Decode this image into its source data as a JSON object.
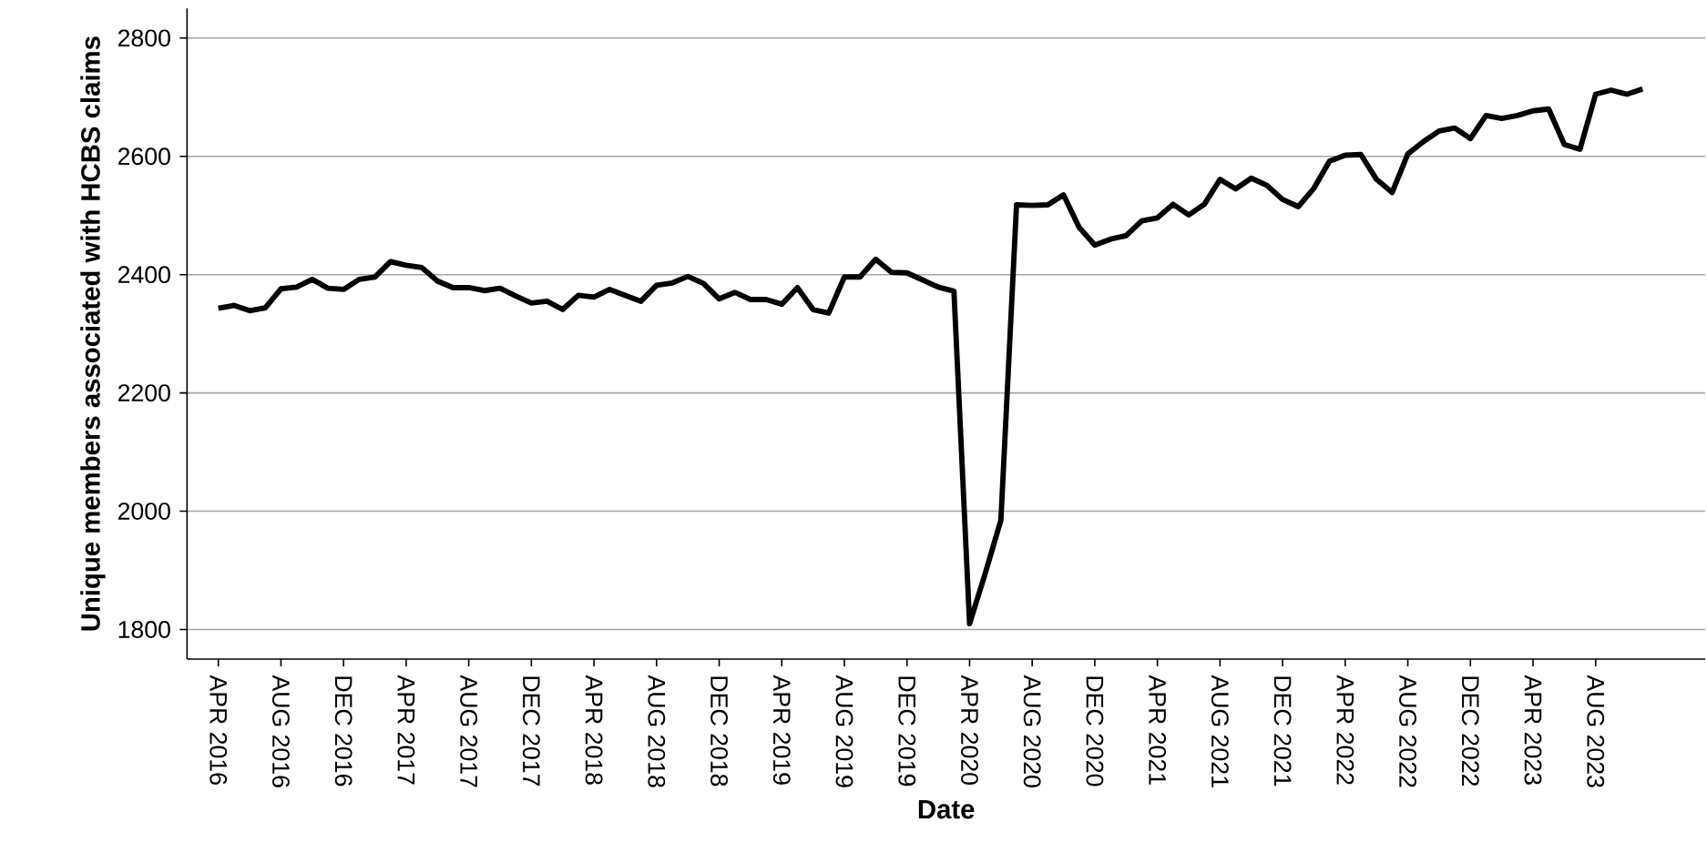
{
  "chart_data": {
    "type": "line",
    "xlabel": "Date",
    "ylabel": "Unique members associated with HCBS claims",
    "x": [
      "2016-04",
      "2016-05",
      "2016-06",
      "2016-07",
      "2016-08",
      "2016-09",
      "2016-10",
      "2016-11",
      "2016-12",
      "2017-01",
      "2017-02",
      "2017-03",
      "2017-04",
      "2017-05",
      "2017-06",
      "2017-07",
      "2017-08",
      "2017-09",
      "2017-10",
      "2017-11",
      "2017-12",
      "2018-01",
      "2018-02",
      "2018-03",
      "2018-04",
      "2018-05",
      "2018-06",
      "2018-07",
      "2018-08",
      "2018-09",
      "2018-10",
      "2018-11",
      "2018-12",
      "2019-01",
      "2019-02",
      "2019-03",
      "2019-04",
      "2019-05",
      "2019-06",
      "2019-07",
      "2019-08",
      "2019-09",
      "2019-10",
      "2019-11",
      "2019-12",
      "2020-01",
      "2020-02",
      "2020-03",
      "2020-04",
      "2020-05",
      "2020-06",
      "2020-07",
      "2020-08",
      "2020-09",
      "2020-10",
      "2020-11",
      "2020-12",
      "2021-01",
      "2021-02",
      "2021-03",
      "2021-04",
      "2021-05",
      "2021-06",
      "2021-07",
      "2021-08",
      "2021-09",
      "2021-10",
      "2021-11",
      "2021-12",
      "2022-01",
      "2022-02",
      "2022-03",
      "2022-04",
      "2022-05",
      "2022-06",
      "2022-07",
      "2022-08",
      "2022-09",
      "2022-10",
      "2022-11",
      "2022-12",
      "2023-01",
      "2023-02",
      "2023-03",
      "2023-04",
      "2023-05",
      "2023-06",
      "2023-07",
      "2023-08",
      "2023-09",
      "2023-10",
      "2023-11"
    ],
    "series": [
      {
        "color": "#000000",
        "values": [
          2343,
          2348,
          2339,
          2344,
          2376,
          2379,
          2392,
          2377,
          2375,
          2392,
          2396,
          2422,
          2416,
          2412,
          2389,
          2378,
          2378,
          2373,
          2377,
          2364,
          2352,
          2355,
          2341,
          2365,
          2362,
          2375,
          2365,
          2355,
          2382,
          2386,
          2397,
          2385,
          2359,
          2370,
          2358,
          2358,
          2350,
          2378,
          2341,
          2335,
          2396,
          2396,
          2426,
          2404,
          2403,
          2391,
          2379,
          2372,
          1810,
          1895,
          1985,
          2518,
          2517,
          2518,
          2535,
          2480,
          2450,
          2460,
          2466,
          2491,
          2496,
          2519,
          2501,
          2519,
          2561,
          2545,
          2563,
          2551,
          2527,
          2515,
          2546,
          2592,
          2602,
          2603,
          2561,
          2539,
          2604,
          2625,
          2643,
          2648,
          2630,
          2669,
          2664,
          2669,
          2677,
          2680,
          2620,
          2612,
          2705,
          2712,
          2705,
          2714
        ]
      }
    ],
    "xlim": [
      "2016-02",
      "2024-03"
    ],
    "ylim": [
      1750,
      2850
    ],
    "xticks": [
      {
        "value": "2016-04",
        "label": "APR 2016"
      },
      {
        "value": "2016-08",
        "label": "AUG 2016"
      },
      {
        "value": "2016-12",
        "label": "DEC 2016"
      },
      {
        "value": "2017-04",
        "label": "APR 2017"
      },
      {
        "value": "2017-08",
        "label": "AUG 2017"
      },
      {
        "value": "2017-12",
        "label": "DEC 2017"
      },
      {
        "value": "2018-04",
        "label": "APR 2018"
      },
      {
        "value": "2018-08",
        "label": "AUG 2018"
      },
      {
        "value": "2018-12",
        "label": "DEC 2018"
      },
      {
        "value": "2019-04",
        "label": "APR 2019"
      },
      {
        "value": "2019-08",
        "label": "AUG 2019"
      },
      {
        "value": "2019-12",
        "label": "DEC 2019"
      },
      {
        "value": "2020-04",
        "label": "APR 2020"
      },
      {
        "value": "2020-08",
        "label": "AUG 2020"
      },
      {
        "value": "2020-12",
        "label": "DEC 2020"
      },
      {
        "value": "2021-04",
        "label": "APR 2021"
      },
      {
        "value": "2021-08",
        "label": "AUG 2021"
      },
      {
        "value": "2021-12",
        "label": "DEC 2021"
      },
      {
        "value": "2022-04",
        "label": "APR 2022"
      },
      {
        "value": "2022-08",
        "label": "AUG 2022"
      },
      {
        "value": "2022-12",
        "label": "DEC 2022"
      },
      {
        "value": "2023-04",
        "label": "APR 2023"
      },
      {
        "value": "2023-08",
        "label": "AUG 2023"
      }
    ],
    "yticks": [
      1800,
      2000,
      2200,
      2400,
      2600,
      2800
    ],
    "grid": "y",
    "legend": false,
    "marker": "none",
    "line_style": "solid"
  }
}
